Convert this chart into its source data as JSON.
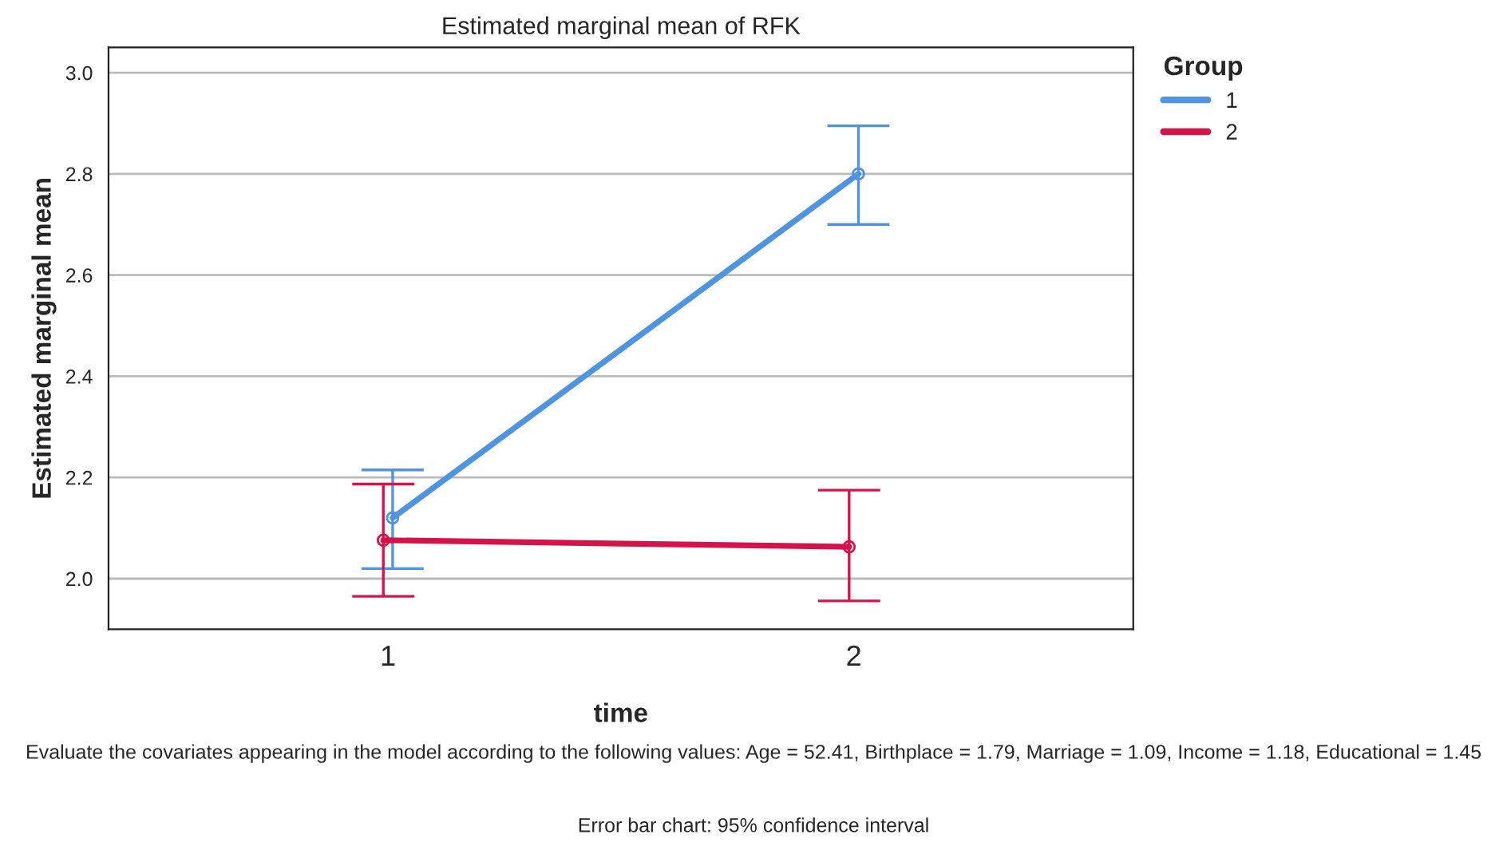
{
  "chart_data": {
    "type": "line",
    "title": "Estimated marginal mean of RFK",
    "xlabel": "time",
    "ylabel": "Estimated marginal mean",
    "legend_title": "Group",
    "categories": [
      "1",
      "2"
    ],
    "series": [
      {
        "name": "1",
        "color": "#4f94e0",
        "values": [
          2.12,
          2.8
        ],
        "errors": [
          [
            2.02,
            2.215
          ],
          [
            2.7,
            2.895
          ]
        ]
      },
      {
        "name": "2",
        "color": "#d6124a",
        "values": [
          2.076,
          2.063
        ],
        "errors": [
          [
            1.965,
            2.187
          ],
          [
            1.956,
            2.175
          ]
        ]
      }
    ],
    "ylim": [
      1.9,
      3.05
    ],
    "yticks": [
      {
        "value": 2.0,
        "label": "2.0"
      },
      {
        "value": 2.2,
        "label": "2.2"
      },
      {
        "value": 2.4,
        "label": "2.4"
      },
      {
        "value": 2.6,
        "label": "2.6"
      },
      {
        "value": 2.8,
        "label": "2.8"
      },
      {
        "value": 3.0,
        "label": "3.0"
      }
    ],
    "grid": "y",
    "legend": "top right",
    "marker": "circle",
    "line_style": "solid",
    "annotations": [
      "Evaluate the covariates appearing in the model according to the following values: Age = 52.41, Birthplace = 1.79, Marriage = 1.09, Income = 1.18, Educational = 1.45",
      "Error bar chart: 95% confidence interval"
    ]
  }
}
